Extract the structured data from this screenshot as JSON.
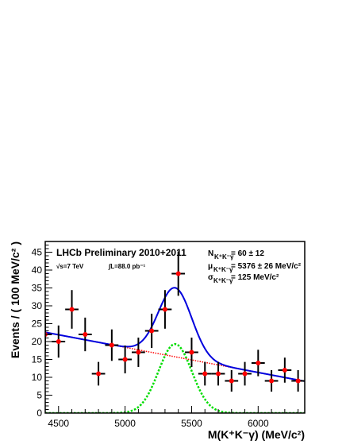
{
  "chart_data": {
    "type": "scatter",
    "title": "",
    "xlabel": "M(K⁺K⁻γ) (MeV/c²)",
    "ylabel": "Events / ( 100 MeV/c² )",
    "xlim": [
      4400,
      6350
    ],
    "ylim": [
      0,
      48
    ],
    "x_ticks": [
      4500,
      5000,
      5500,
      6000
    ],
    "y_ticks": [
      0,
      5,
      10,
      15,
      20,
      25,
      30,
      35,
      40,
      45
    ],
    "grid": false,
    "annotations": {
      "experiment": "LHCb Preliminary 2010+2011",
      "energy": "√s=7 TeV",
      "luminosity": "∫L=88.0 pb⁻¹",
      "n_label": "N",
      "n_sub": "K⁺K⁻γ",
      "n_value": "=  60 ± 12",
      "mu_label": "μ",
      "mu_sub": "K⁺K⁻γ",
      "mu_value": "=  5376 ± 26 MeV/c²",
      "sigma_label": "σ",
      "sigma_sub": "K⁺K⁻γ",
      "sigma_value": "=  125 MeV/c²"
    },
    "series": [
      {
        "kind": "points",
        "color": "#ff0000",
        "bin_half_width": 50,
        "x": [
          4400,
          4500,
          4600,
          4700,
          4800,
          4900,
          5000,
          5100,
          5200,
          5300,
          5400,
          5500,
          5600,
          5700,
          5800,
          5900,
          6000,
          6100,
          6200,
          6300
        ],
        "y": [
          22,
          20,
          29,
          22,
          11,
          19,
          15,
          17,
          23,
          29,
          39,
          17,
          11,
          11,
          9,
          11,
          14,
          9,
          12,
          9
        ],
        "err": [
          4.7,
          4.5,
          5.4,
          4.7,
          3.3,
          4.4,
          3.9,
          4.1,
          4.8,
          5.4,
          6.2,
          4.1,
          3.3,
          3.3,
          3.0,
          3.3,
          3.7,
          3.0,
          3.5,
          3.0
        ]
      },
      {
        "kind": "total-fit",
        "color": "#0000dd",
        "background": {
          "slope": -0.00703,
          "intercept_at_4400": 22.6
        },
        "signal": {
          "amplitude": 19.3,
          "mean": 5376,
          "sigma": 125
        }
      },
      {
        "kind": "background",
        "color": "#ff0000",
        "slope": -0.00703,
        "intercept_at_4400": 22.6
      },
      {
        "kind": "signal",
        "color": "#00dd00",
        "amplitude": 19.3,
        "mean": 5376,
        "sigma": 125
      }
    ]
  }
}
